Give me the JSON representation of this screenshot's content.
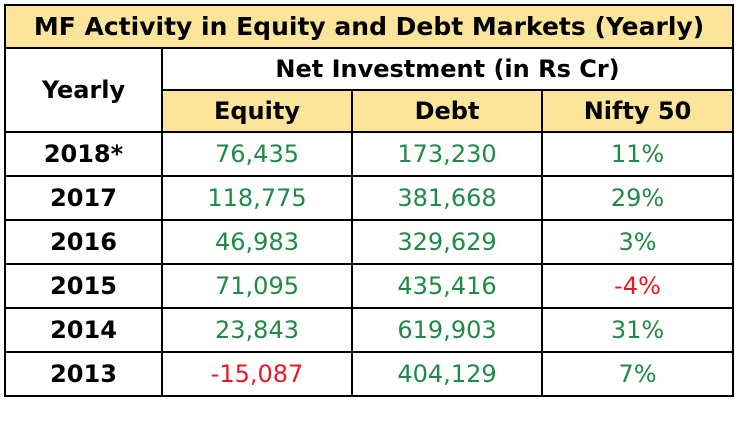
{
  "chart_data": {
    "type": "table",
    "title": "MF Activity in Equity and Debt Markets (Yearly)",
    "row_header_label": "Yearly",
    "group_header": "Net Investment (in Rs Cr)",
    "columns": [
      "Equity",
      "Debt",
      "Nifty 50"
    ],
    "rows": [
      {
        "year": "2018*",
        "equity": "76,435",
        "debt": "173,230",
        "nifty": "11%"
      },
      {
        "year": "2017",
        "equity": "118,775",
        "debt": "381,668",
        "nifty": "29%"
      },
      {
        "year": "2016",
        "equity": "46,983",
        "debt": "329,629",
        "nifty": "3%"
      },
      {
        "year": "2015",
        "equity": "71,095",
        "debt": "435,416",
        "nifty": "-4%"
      },
      {
        "year": "2014",
        "equity": "23,843",
        "debt": "619,903",
        "nifty": "31%"
      },
      {
        "year": "2013",
        "equity": "-15,087",
        "debt": "404,129",
        "nifty": "7%"
      }
    ]
  },
  "colors": {
    "header_fill": "#fce59a",
    "positive": "#1f8a45",
    "negative": "#e31b23",
    "border": "#000000"
  }
}
